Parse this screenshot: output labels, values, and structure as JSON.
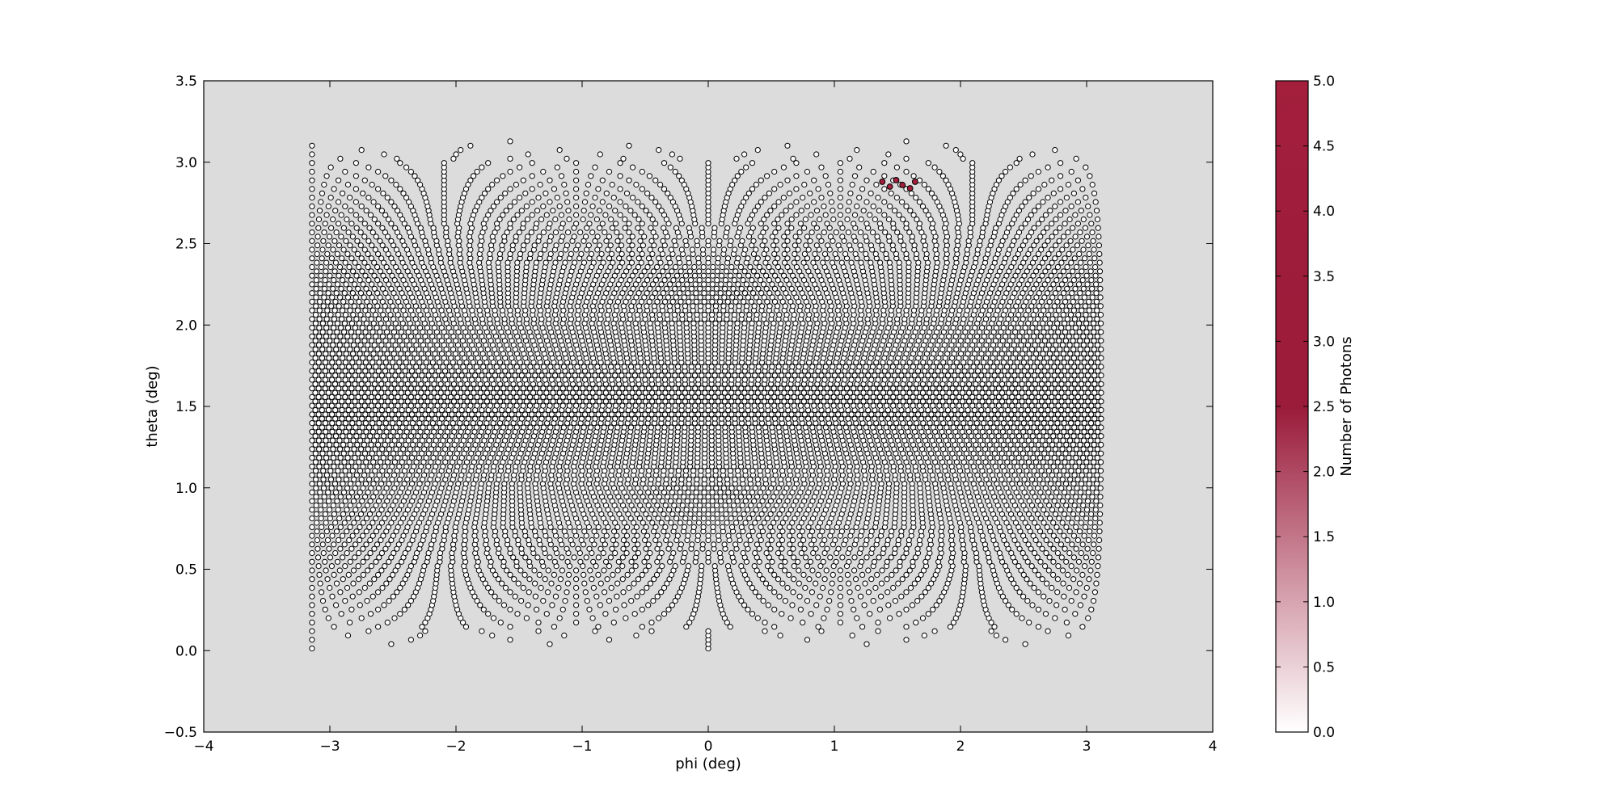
{
  "chart_data": {
    "type": "scatter",
    "title": "",
    "xlabel": "phi (deg)",
    "ylabel": "theta (deg)",
    "xlim": [
      -4,
      4
    ],
    "ylim": [
      -0.5,
      3.5
    ],
    "x_ticks": [
      "−4",
      "−3",
      "−2",
      "−1",
      "0",
      "1",
      "2",
      "3",
      "4"
    ],
    "y_ticks": [
      "−0.5",
      "0.0",
      "0.5",
      "1.0",
      "1.5",
      "2.0",
      "2.5",
      "3.0",
      "3.5"
    ],
    "x_tick_values": [
      -4,
      -3,
      -2,
      -1,
      0,
      1,
      2,
      3,
      4
    ],
    "y_tick_values": [
      -0.5,
      0.0,
      0.5,
      1.0,
      1.5,
      2.0,
      2.5,
      3.0,
      3.5
    ],
    "grid": false,
    "background_color": "#dcdcdc",
    "marker": "circle",
    "marker_edge_color": "#000000",
    "point_distribution": {
      "description_of_data": "dense grid of detector pixels covering phi from -3.14 to 3.14 and theta from 0 to 3.14",
      "phi_range": [
        -3.1416,
        3.1416
      ],
      "theta_range": [
        0.0,
        3.1416
      ]
    },
    "highlighted_points": [
      {
        "x": 1.38,
        "y": 2.88,
        "value": 5
      },
      {
        "x": 1.44,
        "y": 2.85,
        "value": 5
      },
      {
        "x": 1.49,
        "y": 2.89,
        "value": 5
      },
      {
        "x": 1.54,
        "y": 2.86,
        "value": 5
      },
      {
        "x": 1.6,
        "y": 2.84,
        "value": 5
      },
      {
        "x": 1.64,
        "y": 2.88,
        "value": 5
      }
    ],
    "colorbar": {
      "label": "Number of Photons",
      "range": [
        0,
        5
      ],
      "ticks": [
        "0.0",
        "0.5",
        "1.0",
        "1.5",
        "2.0",
        "2.5",
        "3.0",
        "3.5",
        "4.0",
        "4.5",
        "5.0"
      ],
      "tick_values": [
        0,
        0.5,
        1.0,
        1.5,
        2.0,
        2.5,
        3.0,
        3.5,
        4.0,
        4.5,
        5.0
      ],
      "color_low": "#ffffff",
      "color_mid": "#9a1b3a",
      "color_high": "#a31f3c"
    }
  }
}
